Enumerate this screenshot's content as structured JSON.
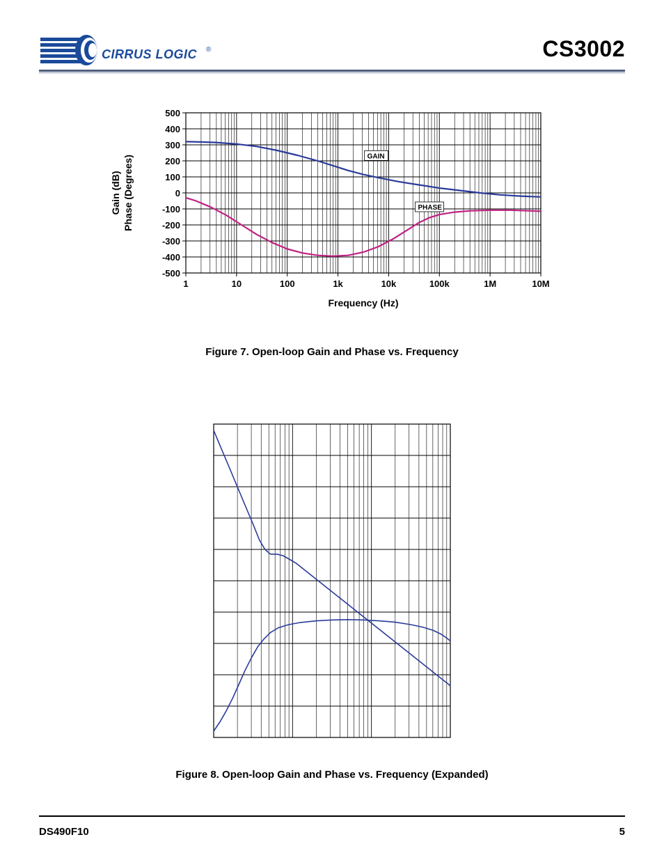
{
  "header": {
    "company": "CIRRUS LOGIC",
    "registered": "®",
    "part_number": "CS3002",
    "logo_color": "#1a4a9a",
    "rule_colors": [
      "#4a5a7a",
      "#a8b0c0",
      "#d8dce4"
    ]
  },
  "figure7": {
    "caption": "Figure 7.  Open-loop Gain and Phase vs. Frequency",
    "type": "line",
    "xscale": "log",
    "xlabel": "Frequency (Hz)",
    "ylabel_top": "Gain (dB)",
    "ylabel_bottom": "Phase (Degrees)",
    "xlim": [
      1,
      10000000
    ],
    "ylim": [
      -500,
      500
    ],
    "yticks": [
      -500,
      -400,
      -300,
      -200,
      -100,
      0,
      100,
      200,
      300,
      400,
      500
    ],
    "xticks": [
      "1",
      "10",
      "100",
      "1k",
      "10k",
      "100k",
      "1M",
      "10M"
    ],
    "label_fontsize": 13,
    "tick_fontsize": 13,
    "tick_fontweight": "bold",
    "background_color": "#ffffff",
    "grid_color": "#000000",
    "grid_linewidth": 1,
    "border_color": "#000000",
    "series": {
      "gain": {
        "label": "GAIN",
        "color": "#2a3a9a",
        "linewidth": 2.2,
        "label_box": {
          "x_decade": 3.55,
          "y": 220
        },
        "data": [
          [
            0,
            320
          ],
          [
            0.3,
            318
          ],
          [
            0.6,
            315
          ],
          [
            1.0,
            305
          ],
          [
            1.4,
            290
          ],
          [
            1.8,
            265
          ],
          [
            2.2,
            235
          ],
          [
            2.6,
            200
          ],
          [
            3.0,
            160
          ],
          [
            3.2,
            140
          ],
          [
            3.5,
            115
          ],
          [
            3.8,
            95
          ],
          [
            4.2,
            70
          ],
          [
            4.6,
            50
          ],
          [
            5.0,
            30
          ],
          [
            5.4,
            15
          ],
          [
            5.8,
            0
          ],
          [
            6.2,
            -12
          ],
          [
            6.6,
            -20
          ],
          [
            7.0,
            -25
          ]
        ]
      },
      "phase": {
        "label": "PHASE",
        "color": "#c02080",
        "linewidth": 2.2,
        "label_box": {
          "x_decade": 4.55,
          "y": -100
        },
        "data": [
          [
            0,
            -30
          ],
          [
            0.2,
            -50
          ],
          [
            0.5,
            -90
          ],
          [
            0.8,
            -140
          ],
          [
            1.1,
            -200
          ],
          [
            1.4,
            -260
          ],
          [
            1.7,
            -310
          ],
          [
            2.0,
            -350
          ],
          [
            2.3,
            -375
          ],
          [
            2.6,
            -390
          ],
          [
            2.9,
            -395
          ],
          [
            3.2,
            -390
          ],
          [
            3.5,
            -370
          ],
          [
            3.8,
            -335
          ],
          [
            4.1,
            -285
          ],
          [
            4.4,
            -225
          ],
          [
            4.6,
            -185
          ],
          [
            4.8,
            -155
          ],
          [
            5.0,
            -135
          ],
          [
            5.3,
            -120
          ],
          [
            5.6,
            -112
          ],
          [
            6.0,
            -108
          ],
          [
            6.4,
            -108
          ],
          [
            6.8,
            -112
          ],
          [
            7.0,
            -115
          ]
        ]
      }
    }
  },
  "figure8": {
    "caption": "Figure 8.  Open-loop Gain and Phase vs. Frequency (Expanded)",
    "type": "line",
    "xscale": "log",
    "x_decades": 3,
    "y_divisions": 10,
    "background_color": "#ffffff",
    "grid_color": "#000000",
    "grid_linewidth": 1,
    "border_color": "#000000",
    "series": {
      "upper": {
        "color": "#2a3a9a",
        "linewidth": 1.6,
        "data": [
          [
            0.0,
            0.98
          ],
          [
            0.1,
            0.92
          ],
          [
            0.2,
            0.86
          ],
          [
            0.3,
            0.8
          ],
          [
            0.4,
            0.74
          ],
          [
            0.5,
            0.68
          ],
          [
            0.58,
            0.63
          ],
          [
            0.65,
            0.6
          ],
          [
            0.72,
            0.585
          ],
          [
            0.8,
            0.585
          ],
          [
            0.88,
            0.58
          ],
          [
            0.95,
            0.57
          ],
          [
            1.05,
            0.555
          ],
          [
            1.15,
            0.535
          ],
          [
            1.3,
            0.505
          ],
          [
            1.45,
            0.475
          ],
          [
            1.6,
            0.445
          ],
          [
            1.75,
            0.415
          ],
          [
            1.9,
            0.385
          ],
          [
            2.05,
            0.355
          ],
          [
            2.2,
            0.325
          ],
          [
            2.35,
            0.295
          ],
          [
            2.5,
            0.265
          ],
          [
            2.65,
            0.235
          ],
          [
            2.8,
            0.205
          ],
          [
            2.9,
            0.185
          ],
          [
            3.0,
            0.165
          ]
        ]
      },
      "lower": {
        "color": "#2a3a9a",
        "linewidth": 1.6,
        "data": [
          [
            0.0,
            0.02
          ],
          [
            0.08,
            0.05
          ],
          [
            0.16,
            0.085
          ],
          [
            0.24,
            0.125
          ],
          [
            0.32,
            0.17
          ],
          [
            0.4,
            0.215
          ],
          [
            0.48,
            0.255
          ],
          [
            0.56,
            0.29
          ],
          [
            0.64,
            0.315
          ],
          [
            0.72,
            0.335
          ],
          [
            0.82,
            0.35
          ],
          [
            0.95,
            0.36
          ],
          [
            1.1,
            0.367
          ],
          [
            1.3,
            0.372
          ],
          [
            1.5,
            0.375
          ],
          [
            1.7,
            0.376
          ],
          [
            1.9,
            0.375
          ],
          [
            2.1,
            0.372
          ],
          [
            2.3,
            0.368
          ],
          [
            2.5,
            0.36
          ],
          [
            2.65,
            0.352
          ],
          [
            2.78,
            0.342
          ],
          [
            2.88,
            0.33
          ],
          [
            2.95,
            0.318
          ],
          [
            3.0,
            0.308
          ]
        ]
      }
    }
  },
  "footer": {
    "doc_id": "DS490F10",
    "page_number": "5"
  }
}
